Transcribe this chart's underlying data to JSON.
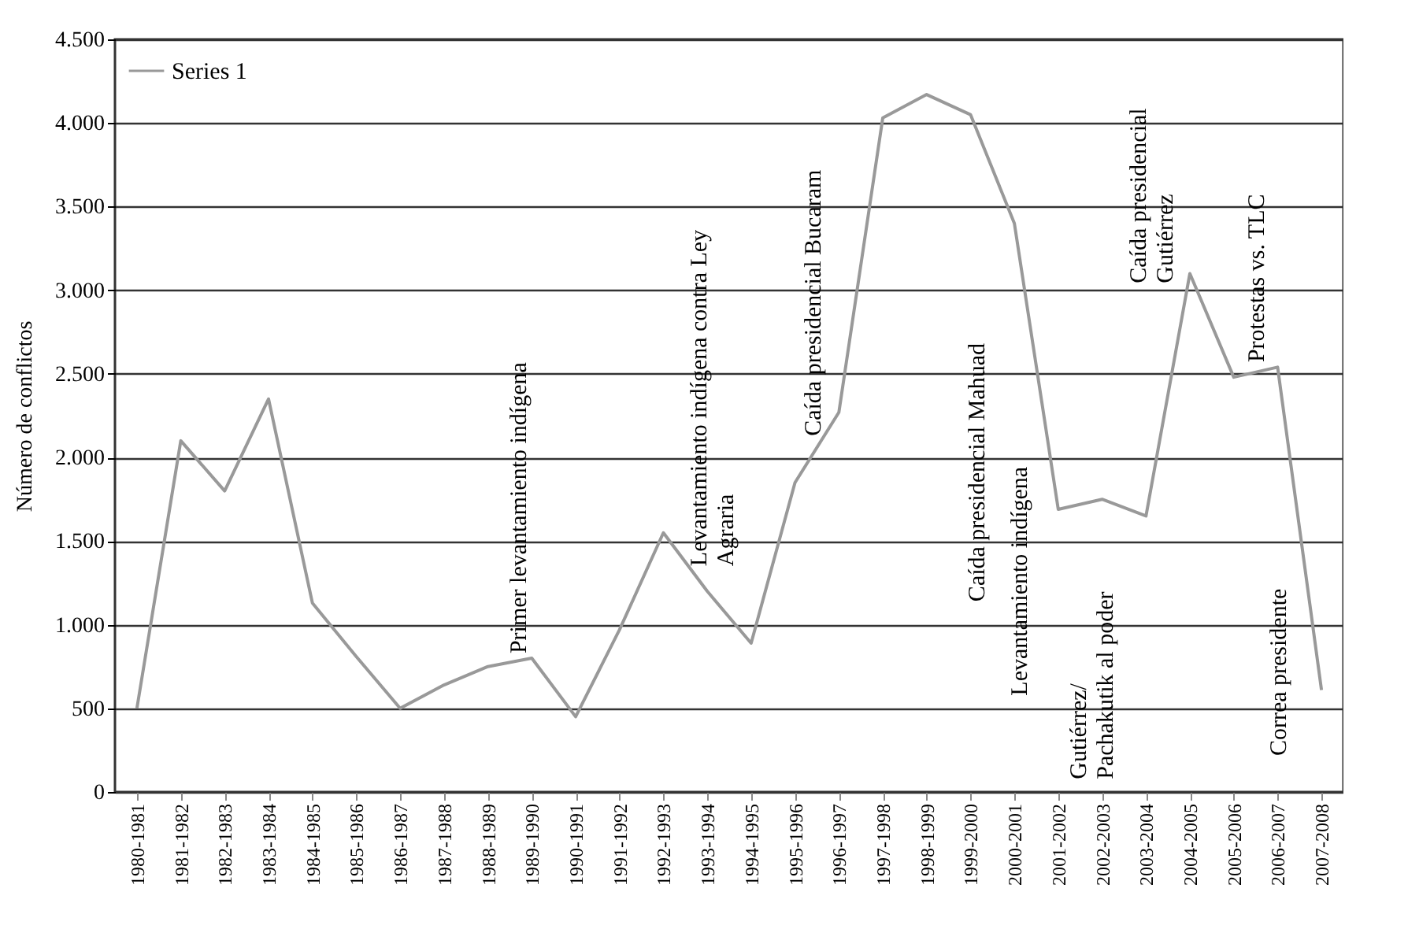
{
  "chart_data": {
    "type": "line",
    "ylabel": "Número de conflictos",
    "categories": [
      "1980-1981",
      "1981-1982",
      "1982-1983",
      "1983-1984",
      "1984-1985",
      "1985-1986",
      "1986-1987",
      "1987-1988",
      "1988-1989",
      "1989-1990",
      "1990-1991",
      "1991-1992",
      "1992-1993",
      "1993-1994",
      "1994-1995",
      "1995-1996",
      "1996-1997",
      "1997-1998",
      "1998-1999",
      "1999-2000",
      "2000-2001",
      "2001-2002",
      "2002-2003",
      "2003-2004",
      "2004-2005",
      "2005-2006",
      "2006-2007",
      "2007-2008"
    ],
    "series": [
      {
        "name": "Series 1",
        "color": "#999999",
        "values": [
          500,
          2100,
          1800,
          2350,
          1130,
          810,
          500,
          640,
          750,
          800,
          450,
          970,
          1550,
          1200,
          890,
          1850,
          2270,
          4030,
          4170,
          4050,
          3400,
          1690,
          1750,
          1650,
          3100,
          2480,
          2540,
          610
        ]
      }
    ],
    "ylim": [
      0,
      4500
    ],
    "yticks": [
      0,
      500,
      {
        "value": 1000,
        "label": "1.000"
      },
      {
        "value": 1500,
        "label": "1.500"
      },
      {
        "value": 2000,
        "label": "2.000"
      },
      {
        "value": 2500,
        "label": "2.500"
      },
      {
        "value": 3000,
        "label": "3.000"
      },
      {
        "value": 3500,
        "label": "3.500"
      },
      {
        "value": 4000,
        "label": "4.000"
      },
      {
        "value": 4500,
        "label": "4.500"
      }
    ],
    "grid": "y",
    "legend": "top left",
    "marker": "none",
    "line_style": "solid",
    "annotations": [
      "Primer levantamiento indígena",
      "Levantamiento indígena contra Ley\nAgraria",
      "Caída presidencial Bucaram",
      "Caída presidencial Mahuad",
      "Levantamiento indígena",
      "Gutiérrez/\nPachakutik al poder",
      "Caída presidencial\nGutiérrez",
      "Protestas vs. TLC",
      "Correa presidente"
    ]
  }
}
